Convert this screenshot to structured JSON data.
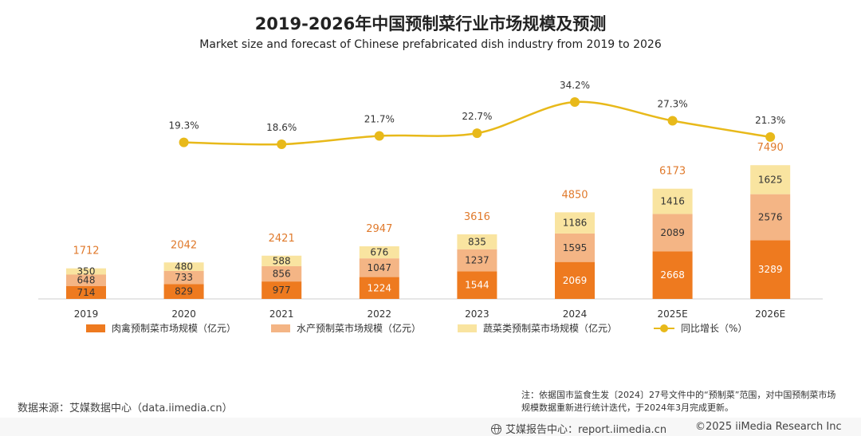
{
  "title": "2019-2026年中国预制菜行业市场规模及预测",
  "subtitle": "Market size and forecast of Chinese prefabricated dish industry from 2019 to 2026",
  "chart_data": {
    "type": "bar",
    "stacked": true,
    "categories": [
      "2019",
      "2020",
      "2021",
      "2022",
      "2023",
      "2024",
      "2025E",
      "2026E"
    ],
    "series": [
      {
        "name": "肉禽预制菜市场规模（亿元）",
        "color": "#ee7a1f",
        "values": [
          714,
          829,
          977,
          1224,
          1544,
          2069,
          2668,
          3289
        ]
      },
      {
        "name": "水产预制菜市场规模（亿元）",
        "color": "#f4b585",
        "values": [
          648,
          733,
          856,
          1047,
          1237,
          1595,
          2089,
          2576
        ]
      },
      {
        "name": "蔬菜类预制菜市场规模（亿元）",
        "color": "#f9e4a0",
        "values": [
          350,
          480,
          588,
          676,
          835,
          1186,
          1416,
          1625
        ]
      }
    ],
    "totals": [
      1712,
      2042,
      2421,
      2947,
      3616,
      4850,
      6173,
      7490
    ],
    "line": {
      "name": "同比增长（%）",
      "color": "#e8b91a",
      "labels": [
        "19.3%",
        "18.6%",
        "21.7%",
        "22.7%",
        "34.2%",
        "27.3%",
        "21.3%"
      ],
      "values": [
        19.3,
        18.6,
        21.7,
        22.7,
        34.2,
        27.3,
        21.3
      ],
      "categories": [
        "2020",
        "2021",
        "2022",
        "2023",
        "2024",
        "2025E",
        "2026E"
      ]
    },
    "colors": {
      "total_label": "#e07a2c",
      "axis": "#cccccc",
      "dark_label": "#333333",
      "light_label": "#ffffff"
    }
  },
  "source": "数据来源：艾媒数据中心（data.iimedia.cn）",
  "note": "注：依据国市监食生发〔2024〕27号文件中的“预制菜”范围，对中国预制菜市场规模数据重新进行统计迭代，于2024年3月完成更新。",
  "footer": {
    "report": "艾媒报告中心：report.iimedia.cn",
    "copyright": "©2025  iiMedia Research  Inc"
  }
}
